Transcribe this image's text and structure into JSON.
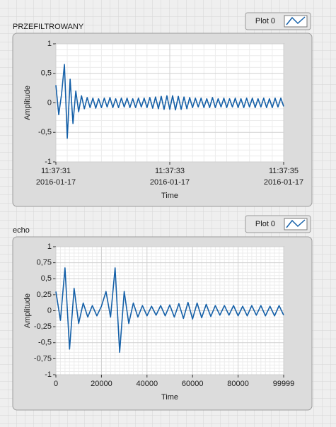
{
  "chart_data": [
    {
      "type": "line",
      "title": "PRZEFILTROWANY",
      "xlabel": "Time",
      "ylabel": "Amplitude",
      "grid": true,
      "x": [
        0,
        0.05,
        0.1,
        0.15,
        0.2,
        0.25,
        0.3,
        0.35,
        0.4,
        0.45,
        0.5,
        0.55,
        0.6,
        0.65,
        0.7,
        0.75,
        0.8,
        0.85,
        0.9,
        0.95,
        1,
        1.05,
        1.1,
        1.15,
        1.2,
        1.25,
        1.3,
        1.35,
        1.4,
        1.45,
        1.5,
        1.55,
        1.6,
        1.65,
        1.7,
        1.75,
        1.8,
        1.85,
        1.9,
        1.95,
        2,
        2.05,
        2.1,
        2.15,
        2.2,
        2.25,
        2.3,
        2.35,
        2.4,
        2.45,
        2.5,
        2.55,
        2.6,
        2.65,
        2.7,
        2.75,
        2.8,
        2.85,
        2.9,
        2.95,
        3,
        3.05,
        3.1,
        3.15,
        3.2,
        3.25,
        3.3,
        3.35,
        3.4,
        3.45,
        3.5,
        3.55,
        3.6,
        3.65,
        3.7,
        3.75,
        3.8,
        3.85,
        3.9,
        3.95,
        4
      ],
      "series": [
        {
          "name": "Plot 0",
          "color": "#1560a8",
          "values": [
            0.3,
            -0.2,
            0.15,
            0.65,
            -0.6,
            0.4,
            -0.35,
            0.2,
            -0.15,
            0.12,
            -0.1,
            0.09,
            -0.08,
            0.08,
            -0.09,
            0.07,
            -0.08,
            0.08,
            -0.07,
            0.09,
            -0.08,
            0.07,
            -0.08,
            0.08,
            -0.07,
            0.08,
            -0.08,
            0.07,
            -0.08,
            0.08,
            -0.07,
            0.08,
            -0.08,
            0.09,
            -0.09,
            0.1,
            -0.1,
            0.11,
            -0.11,
            0.12,
            -0.11,
            0.12,
            -0.12,
            0.11,
            -0.11,
            0.1,
            -0.1,
            0.09,
            -0.08,
            0.08,
            -0.07,
            0.08,
            -0.08,
            0.07,
            -0.08,
            0.09,
            -0.08,
            0.07,
            -0.07,
            0.08,
            -0.08,
            0.07,
            -0.07,
            0.08,
            -0.08,
            0.07,
            -0.08,
            0.08,
            -0.07,
            0.08,
            -0.08,
            0.07,
            -0.07,
            0.08,
            -0.08,
            0.07,
            -0.08,
            0.08,
            -0.07,
            0.08,
            -0.06
          ]
        }
      ],
      "xlim": [
        0,
        4
      ],
      "ylim": [
        -1,
        1
      ],
      "xticks": [
        {
          "value": 0,
          "label": "11:37:31",
          "date": "2016-01-17"
        },
        {
          "value": 2,
          "label": "11:37:33",
          "date": "2016-01-17"
        },
        {
          "value": 4,
          "label": "11:37:35",
          "date": "2016-01-17"
        }
      ],
      "yticks": [
        1,
        {
          "value": 0.5,
          "label": "0,5"
        },
        0,
        {
          "value": -0.5,
          "label": "-0,5"
        },
        -1
      ]
    },
    {
      "type": "line",
      "title": "echo",
      "xlabel": "Time",
      "ylabel": "Amplitude",
      "grid": true,
      "x": [
        0,
        2000,
        4000,
        6000,
        8000,
        10000,
        12000,
        14000,
        16000,
        18000,
        20000,
        22000,
        24000,
        26000,
        28000,
        30000,
        32000,
        34000,
        36000,
        38000,
        40000,
        42000,
        44000,
        46000,
        48000,
        50000,
        52000,
        54000,
        56000,
        58000,
        60000,
        62000,
        64000,
        66000,
        68000,
        70000,
        72000,
        74000,
        76000,
        78000,
        80000,
        82000,
        84000,
        86000,
        88000,
        90000,
        92000,
        94000,
        96000,
        98000,
        99999
      ],
      "series": [
        {
          "name": "Plot 0",
          "color": "#1560a8",
          "values": [
            0.3,
            -0.15,
            0.67,
            -0.6,
            0.35,
            -0.2,
            0.12,
            -0.1,
            0.08,
            -0.08,
            0.07,
            0.3,
            -0.1,
            0.67,
            -0.65,
            0.3,
            -0.2,
            0.12,
            -0.1,
            0.08,
            -0.08,
            0.07,
            -0.07,
            0.08,
            -0.08,
            0.09,
            -0.1,
            0.11,
            -0.12,
            0.13,
            -0.13,
            0.12,
            -0.11,
            0.1,
            -0.09,
            0.08,
            -0.07,
            0.08,
            -0.07,
            0.08,
            -0.08,
            0.07,
            -0.08,
            0.08,
            -0.07,
            0.08,
            -0.08,
            0.07,
            -0.08,
            0.08,
            -0.07
          ]
        }
      ],
      "xlim": [
        0,
        99999
      ],
      "ylim": [
        -1,
        1
      ],
      "xticks": [
        0,
        20000,
        40000,
        60000,
        80000,
        99999
      ],
      "yticks": [
        1,
        {
          "value": 0.75,
          "label": "0,75"
        },
        {
          "value": 0.5,
          "label": "0,5"
        },
        {
          "value": 0.25,
          "label": "0,25"
        },
        0,
        {
          "value": -0.25,
          "label": "-0,25"
        },
        {
          "value": -0.5,
          "label": "-0,5"
        },
        {
          "value": -0.75,
          "label": "-0,75"
        },
        -1
      ]
    }
  ]
}
